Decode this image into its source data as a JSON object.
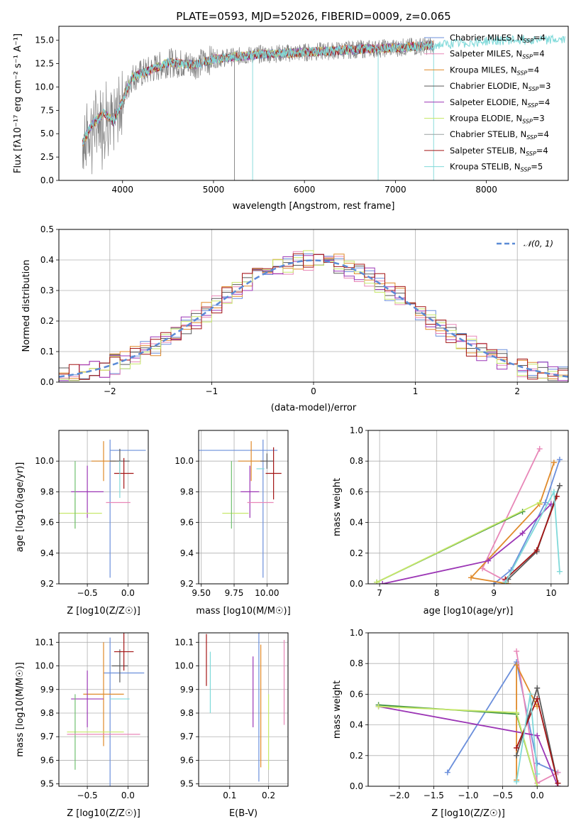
{
  "colors": {
    "grid": "#b0b0b0",
    "spec_gray": "#808080",
    "spec_cyan": "#7fd9d9",
    "gauss": "#5b8bd6",
    "series": [
      "#6b8fdb",
      "#e887b8",
      "#e08a2a",
      "#5a5a5a",
      "#9b35b5",
      "#c7e86b",
      "#9aa0a0",
      "#a31515",
      "#7fd9d9",
      "#6fbf6f",
      "#3a8f3a"
    ]
  },
  "chart_data": [
    {
      "id": "spectrum",
      "type": "line",
      "title": "PLATE=0593, MJD=52026, FIBERID=0009, z=0.065",
      "xlabel": "wavelength [Angstrom, rest frame]",
      "ylabel": "Flux [fλ10⁻¹⁷ erg cm⁻² s⁻¹ A⁻¹]",
      "xlim": [
        3300,
        8900
      ],
      "ylim": [
        0,
        16.5
      ],
      "xticks": [
        "4000",
        "5000",
        "6000",
        "7000",
        "8000"
      ],
      "yticks": [
        "0.0",
        "2.5",
        "5.0",
        "7.5",
        "10.0",
        "12.5",
        "15.0"
      ],
      "legend_position": "right",
      "legend": [
        "Chabrier MILES, N_SSP=4",
        "Salpeter MILES, N_SSP=4",
        "Kroupa MILES, N_SSP=4",
        "Chabrier ELODIE, N_SSP=3",
        "Salpeter ELODIE, N_SSP=4",
        "Kroupa ELODIE, N_SSP=3",
        "Chabrier STELIB, N_SSP=4",
        "Salpeter STELIB, N_SSP=4",
        "Kroupa STELIB, N_SSP=5"
      ],
      "model_trend": {
        "x": [
          3550,
          3650,
          3800,
          3900,
          4000,
          4100,
          4300,
          4500,
          4800,
          5000,
          5500,
          6000,
          6500,
          7000,
          7500,
          8000,
          8500,
          8900
        ],
        "y": [
          3.8,
          5.8,
          7.2,
          6.2,
          8.5,
          11.0,
          11.8,
          12.6,
          12.4,
          13.0,
          13.5,
          13.7,
          14.0,
          14.2,
          14.5,
          14.9,
          15.1,
          15.0
        ]
      }
    },
    {
      "id": "residuals",
      "type": "histogram",
      "xlabel": "(data-model)/error",
      "ylabel": "Normed distribution",
      "xlim": [
        -2.5,
        2.5
      ],
      "ylim": [
        0,
        0.5
      ],
      "xticks": [
        "−2",
        "−1",
        "0",
        "1",
        "2"
      ],
      "yticks": [
        "0.0",
        "0.1",
        "0.2",
        "0.3",
        "0.4",
        "0.5"
      ],
      "legend": [
        "𝒩(0, 1)"
      ],
      "legend_position": "top-right",
      "bin_width": 0.1
    },
    {
      "id": "age_vs_Z",
      "type": "errorbar",
      "xlabel": "Z [log10(Z/Z☉)]",
      "ylabel": "age  [log10(age/yr)]",
      "xlim": [
        -0.85,
        0.25
      ],
      "ylim": [
        9.2,
        10.2
      ],
      "xticks": [
        "−0.5",
        "0.0"
      ],
      "yticks": [
        "9.2",
        "9.4",
        "9.6",
        "9.8",
        "10.0"
      ],
      "points": [
        {
          "x": 0.0,
          "y": 10.07,
          "xerr": 0.22,
          "yerr": 0.0
        },
        {
          "x": -0.22,
          "y": 9.69,
          "xerr": 0.0,
          "yerr": 0.45
        },
        {
          "x": -0.3,
          "y": 10.0,
          "xerr": 0.15,
          "yerr": 0.13
        },
        {
          "x": -0.1,
          "y": 10.0,
          "xerr": 0.12,
          "yerr": 0.08
        },
        {
          "x": -0.5,
          "y": 9.8,
          "xerr": 0.2,
          "yerr": 0.17
        },
        {
          "x": -0.65,
          "y": 9.66,
          "xerr": 0.33,
          "yerr": 0.1
        },
        {
          "x": -0.65,
          "y": 9.78,
          "xerr": 0.0,
          "yerr": 0.22
        },
        {
          "x": -0.05,
          "y": 9.92,
          "xerr": 0.12,
          "yerr": 0.1
        },
        {
          "x": -0.1,
          "y": 9.88,
          "xerr": 0.0,
          "yerr": 0.12
        },
        {
          "x": -0.12,
          "y": 9.73,
          "xerr": 0.15,
          "yerr": 0.0
        }
      ]
    },
    {
      "id": "age_vs_mass",
      "type": "errorbar",
      "xlabel": "mass [log10(M/M☉)]",
      "ylabel": "",
      "xlim": [
        9.48,
        10.16
      ],
      "ylim": [
        9.2,
        10.2
      ],
      "xticks": [
        "9.50",
        "9.75",
        "10.00"
      ],
      "yticks": [
        "9.2",
        "9.4",
        "9.6",
        "9.8",
        "10.0"
      ],
      "points": [
        {
          "x": 9.78,
          "y": 10.07,
          "xerr": 0.3,
          "yerr": 0.0
        },
        {
          "x": 9.97,
          "y": 9.69,
          "xerr": 0.0,
          "yerr": 0.45
        },
        {
          "x": 9.88,
          "y": 10.0,
          "xerr": 0.1,
          "yerr": 0.13
        },
        {
          "x": 10.0,
          "y": 10.0,
          "xerr": 0.05,
          "yerr": 0.05
        },
        {
          "x": 9.87,
          "y": 9.8,
          "xerr": 0.07,
          "yerr": 0.17
        },
        {
          "x": 9.76,
          "y": 9.66,
          "xerr": 0.1,
          "yerr": 0.0
        },
        {
          "x": 9.73,
          "y": 9.78,
          "xerr": 0.0,
          "yerr": 0.22
        },
        {
          "x": 10.05,
          "y": 9.92,
          "xerr": 0.06,
          "yerr": 0.17
        },
        {
          "x": 9.95,
          "y": 9.95,
          "xerr": 0.03,
          "yerr": 0.0
        },
        {
          "x": 9.95,
          "y": 9.73,
          "xerr": 0.1,
          "yerr": 0.0
        }
      ]
    },
    {
      "id": "massweight_vs_age",
      "type": "line",
      "xlabel": "age  [log10(age/yr)]",
      "ylabel": "mass weight",
      "xlim": [
        6.8,
        10.3
      ],
      "ylim": [
        0,
        1.0
      ],
      "xticks": [
        "7",
        "8",
        "9",
        "10"
      ],
      "yticks": [
        "0.0",
        "0.2",
        "0.4",
        "0.6",
        "0.8",
        "1.0"
      ],
      "series": [
        {
          "x": [
            9.0,
            9.3,
            9.9,
            10.15
          ],
          "y": [
            0.0,
            0.09,
            0.53,
            0.81
          ]
        },
        {
          "x": [
            9.2,
            8.8,
            9.8
          ],
          "y": [
            0.02,
            0.1,
            0.88
          ]
        },
        {
          "x": [
            9.25,
            8.6,
            9.8,
            10.05
          ],
          "y": [
            0.0,
            0.04,
            0.52,
            0.79
          ]
        },
        {
          "x": [
            6.95,
            9.5
          ],
          "y": [
            0.01,
            0.47
          ]
        },
        {
          "x": [
            7.05,
            8.9,
            9.5,
            10.0
          ],
          "y": [
            0.0,
            0.15,
            0.33,
            0.52
          ]
        },
        {
          "x": [
            6.95,
            9.8
          ],
          "y": [
            0.01,
            0.53
          ]
        },
        {
          "x": [
            9.25,
            9.75,
            10.15
          ],
          "y": [
            0.03,
            0.21,
            0.64
          ]
        },
        {
          "x": [
            9.2,
            9.75,
            10.1
          ],
          "y": [
            0.03,
            0.22,
            0.57
          ]
        },
        {
          "x": [
            9.2,
            10.05,
            10.15
          ],
          "y": [
            0.01,
            0.6,
            0.08
          ]
        }
      ]
    },
    {
      "id": "mass_vs_Z",
      "type": "errorbar",
      "xlabel": "Z [log10(Z/Z☉)]",
      "ylabel": "mass [log10(M/M☉)]",
      "xlim": [
        -0.85,
        0.25
      ],
      "ylim": [
        9.49,
        10.14
      ],
      "xticks": [
        "−0.5",
        "0.0"
      ],
      "yticks": [
        "9.5",
        "9.6",
        "9.7",
        "9.8",
        "9.9",
        "10.0",
        "10.1"
      ],
      "points": [
        {
          "x": -0.05,
          "y": 9.97,
          "xerr": 0.25,
          "yerr": 0.0
        },
        {
          "x": -0.22,
          "y": 9.8,
          "xerr": 0.0,
          "yerr": 0.32
        },
        {
          "x": -0.3,
          "y": 9.88,
          "xerr": 0.25,
          "yerr": 0.22
        },
        {
          "x": -0.1,
          "y": 10.0,
          "xerr": 0.1,
          "yerr": 0.07
        },
        {
          "x": -0.5,
          "y": 9.86,
          "xerr": 0.2,
          "yerr": 0.12
        },
        {
          "x": -0.4,
          "y": 9.72,
          "xerr": 0.35,
          "yerr": 0.0
        },
        {
          "x": -0.65,
          "y": 9.72,
          "xerr": 0.0,
          "yerr": 0.16
        },
        {
          "x": -0.05,
          "y": 10.06,
          "xerr": 0.12,
          "yerr": 0.08
        },
        {
          "x": -0.1,
          "y": 9.86,
          "xerr": 0.12,
          "yerr": 0.0
        },
        {
          "x": -0.3,
          "y": 9.71,
          "xerr": 0.45,
          "yerr": 0.0
        }
      ]
    },
    {
      "id": "mass_vs_ebv",
      "type": "errorbar",
      "xlabel": "E(B-V)",
      "ylabel": "",
      "xlim": [
        0.02,
        0.25
      ],
      "ylim": [
        9.49,
        10.14
      ],
      "xticks": [
        "0.1",
        "0.2"
      ],
      "yticks": [
        "9.5",
        "9.6",
        "9.7",
        "9.8",
        "9.9",
        "10.0",
        "10.1"
      ],
      "points": [
        {
          "x": 0.04,
          "y": 10.025,
          "xerr": 0.0,
          "yerr": 0.11
        },
        {
          "x": 0.05,
          "y": 9.93,
          "xerr": 0.0,
          "yerr": 0.13
        },
        {
          "x": 0.16,
          "y": 9.89,
          "xerr": 0.0,
          "yerr": 0.15
        },
        {
          "x": 0.175,
          "y": 9.825,
          "xerr": 0.0,
          "yerr": 0.315
        },
        {
          "x": 0.18,
          "y": 9.83,
          "xerr": 0.0,
          "yerr": 0.26
        },
        {
          "x": 0.2,
          "y": 9.72,
          "xerr": 0.0,
          "yerr": 0.16
        },
        {
          "x": 0.24,
          "y": 9.93,
          "xerr": 0.0,
          "yerr": 0.18
        }
      ]
    },
    {
      "id": "massweight_vs_Z",
      "type": "line",
      "xlabel": "Z [log10(Z/Z☉)]",
      "ylabel": "mass weight",
      "xlim": [
        -2.45,
        0.45
      ],
      "ylim": [
        0,
        1.0
      ],
      "xticks": [
        "−2.0",
        "−1.5",
        "−1.0",
        "−0.5",
        "0.0"
      ],
      "yticks": [
        "0.0",
        "0.2",
        "0.4",
        "0.6",
        "0.8",
        "1.0"
      ],
      "series": [
        {
          "x": [
            -1.3,
            -0.3,
            0.0,
            0.3
          ],
          "y": [
            0.09,
            0.81,
            0.15,
            0.09
          ]
        },
        {
          "x": [
            -0.3,
            0.0,
            0.3
          ],
          "y": [
            0.88,
            0.02,
            0.09
          ]
        },
        {
          "x": [
            -0.3,
            -0.3,
            0.0
          ],
          "y": [
            0.04,
            0.79,
            0.52
          ]
        },
        {
          "x": [
            -2.3,
            -0.3,
            0.0
          ],
          "y": [
            0.53,
            0.47,
            0.0
          ]
        },
        {
          "x": [
            -2.3,
            0.0,
            0.3
          ],
          "y": [
            0.52,
            0.33,
            0.0
          ]
        },
        {
          "x": [
            -2.3,
            -0.3,
            0.0
          ],
          "y": [
            0.52,
            0.48,
            0.0
          ]
        },
        {
          "x": [
            -0.3,
            0.0,
            0.3
          ],
          "y": [
            0.2,
            0.64,
            0.02
          ]
        },
        {
          "x": [
            -0.3,
            0.0,
            0.3
          ],
          "y": [
            0.25,
            0.57,
            0.02
          ]
        },
        {
          "x": [
            -0.3,
            -0.1,
            0.0
          ],
          "y": [
            0.03,
            0.6,
            0.08
          ]
        }
      ]
    }
  ]
}
